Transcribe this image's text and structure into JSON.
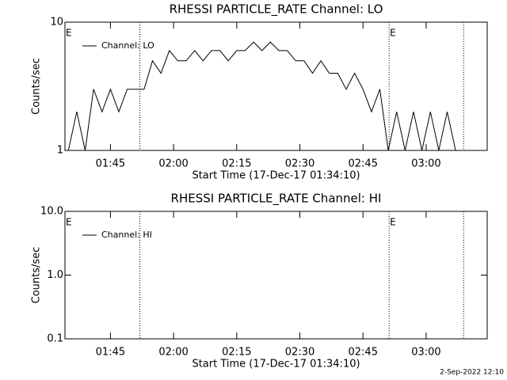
{
  "chart_data": [
    {
      "type": "line",
      "title": "RHESSI PARTICLE_RATE Channel: LO",
      "x_label": "Start Time (17-Dec-17 01:34:10)",
      "y_label": "Counts/sec",
      "log_y": true,
      "legend": "upper left",
      "xlim": [
        94.2,
        194.5
      ],
      "ylim": [
        1,
        10
      ],
      "yticks": [
        1,
        10
      ],
      "xticks": [
        {
          "value": 105,
          "label": "01:45"
        },
        {
          "value": 120,
          "label": "02:00"
        },
        {
          "value": 135,
          "label": "02:15"
        },
        {
          "value": 150,
          "label": "02:30"
        },
        {
          "value": 165,
          "label": "02:45"
        },
        {
          "value": 180,
          "label": "03:00"
        }
      ],
      "vlines": [
        112,
        171.2,
        188.9
      ],
      "annotations": [
        {
          "text": "E",
          "x": 94.2
        },
        {
          "text": "E",
          "x": 171.2
        }
      ],
      "series": [
        {
          "name": "Channel: LO",
          "color": "#000000",
          "x": [
            95,
            97,
            99,
            101,
            103,
            105,
            107,
            109,
            111,
            113,
            115,
            117,
            119,
            121,
            123,
            125,
            127,
            129,
            131,
            133,
            135,
            137,
            139,
            141,
            143,
            145,
            147,
            149,
            151,
            153,
            155,
            157,
            159,
            161,
            163,
            165,
            167,
            169,
            171,
            173,
            175,
            177,
            179,
            181,
            183,
            185,
            187
          ],
          "values": [
            1,
            2,
            1,
            3,
            2,
            3,
            2,
            3,
            3,
            3,
            5,
            4,
            6,
            5,
            5,
            6,
            5,
            6,
            6,
            5,
            6,
            6,
            7,
            6,
            7,
            6,
            6,
            5,
            5,
            4,
            5,
            4,
            4,
            3,
            4,
            3,
            2,
            3,
            1,
            2,
            1,
            2,
            1,
            2,
            1,
            2,
            1
          ]
        }
      ]
    },
    {
      "type": "line",
      "title": "RHESSI PARTICLE_RATE Channel: HI",
      "x_label": "Start Time (17-Dec-17 01:34:10)",
      "y_label": "Counts/sec",
      "log_y": true,
      "legend": "upper left",
      "xlim": [
        94.2,
        194.5
      ],
      "ylim": [
        0.1,
        10
      ],
      "yticks": [
        0.1,
        {
          "value": 1,
          "label": "1.0"
        },
        {
          "value": 10,
          "label": "10.0"
        }
      ],
      "xticks": [
        {
          "value": 105,
          "label": "01:45"
        },
        {
          "value": 120,
          "label": "02:00"
        },
        {
          "value": 135,
          "label": "02:15"
        },
        {
          "value": 150,
          "label": "02:30"
        },
        {
          "value": 165,
          "label": "02:45"
        },
        {
          "value": 180,
          "label": "03:00"
        }
      ],
      "vlines": [
        112,
        171.2,
        188.9
      ],
      "annotations": [
        {
          "text": "E",
          "x": 94.2
        },
        {
          "text": "E",
          "x": 171.2
        }
      ],
      "series": [
        {
          "name": "Channel: HI",
          "color": "#000000",
          "x": [],
          "values": []
        }
      ]
    }
  ],
  "footer": "2-Sep-2022 12:10"
}
